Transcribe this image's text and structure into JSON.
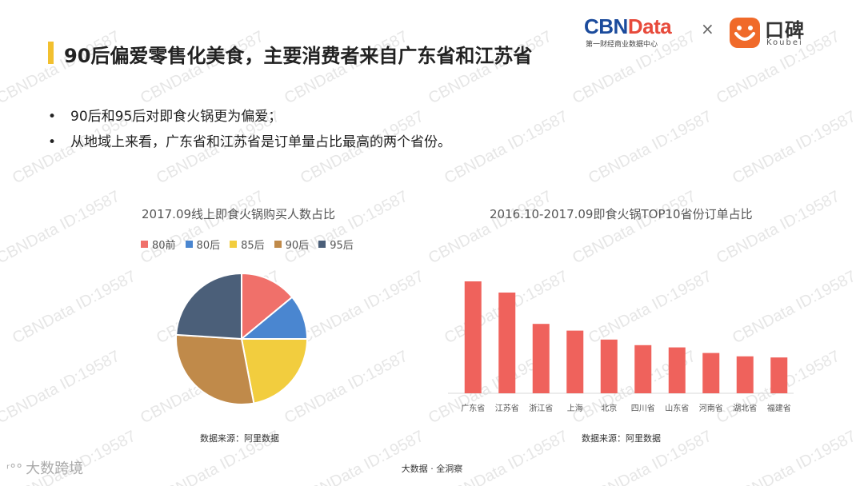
{
  "header": {
    "title": "90后偏爱零售化美食，主要消费者来自广东省和江苏省"
  },
  "logos": {
    "cbn_part1": "CBN",
    "cbn_part2": "Data",
    "cbn_sub": "第一财经商业数据中心",
    "separator": "×",
    "koubei_cn": "口碑",
    "koubei_en": "Koubei"
  },
  "bullets": [
    "90后和95后对即食火锅更为偏爱；",
    "从地域上来看，广东省和江苏省是订单量占比最高的两个省份。"
  ],
  "bullet_marker": "•",
  "chart_data": [
    {
      "type": "pie",
      "title": "2017.09线上即食火锅购买人数占比",
      "categories": [
        "80前",
        "80后",
        "85后",
        "90后",
        "95后"
      ],
      "values": [
        14,
        11,
        22,
        29,
        24
      ],
      "colors": [
        "#f0706a",
        "#4a86d0",
        "#f2cd3e",
        "#c08a4a",
        "#4b5f79"
      ],
      "legend_position": "top",
      "source": "数据来源：阿里数据"
    },
    {
      "type": "bar",
      "title": "2016.10-2017.09即食火锅TOP10省份订单占比",
      "categories": [
        "广东省",
        "江苏省",
        "浙江省",
        "上海",
        "北京",
        "四川省",
        "山东省",
        "河南省",
        "湖北省",
        "福建省"
      ],
      "values": [
        100,
        90,
        62,
        56,
        48,
        43,
        41,
        36,
        33,
        32
      ],
      "ylim": [
        0,
        105
      ],
      "grid": false,
      "color": "#ef625c",
      "source": "数据来源：阿里数据"
    }
  ],
  "footer": "大数据 · 全洞察",
  "corner_brand": {
    "icon": "ʳ°°",
    "text": "大数跨境"
  },
  "watermark_text": "CBNData ID:19587"
}
